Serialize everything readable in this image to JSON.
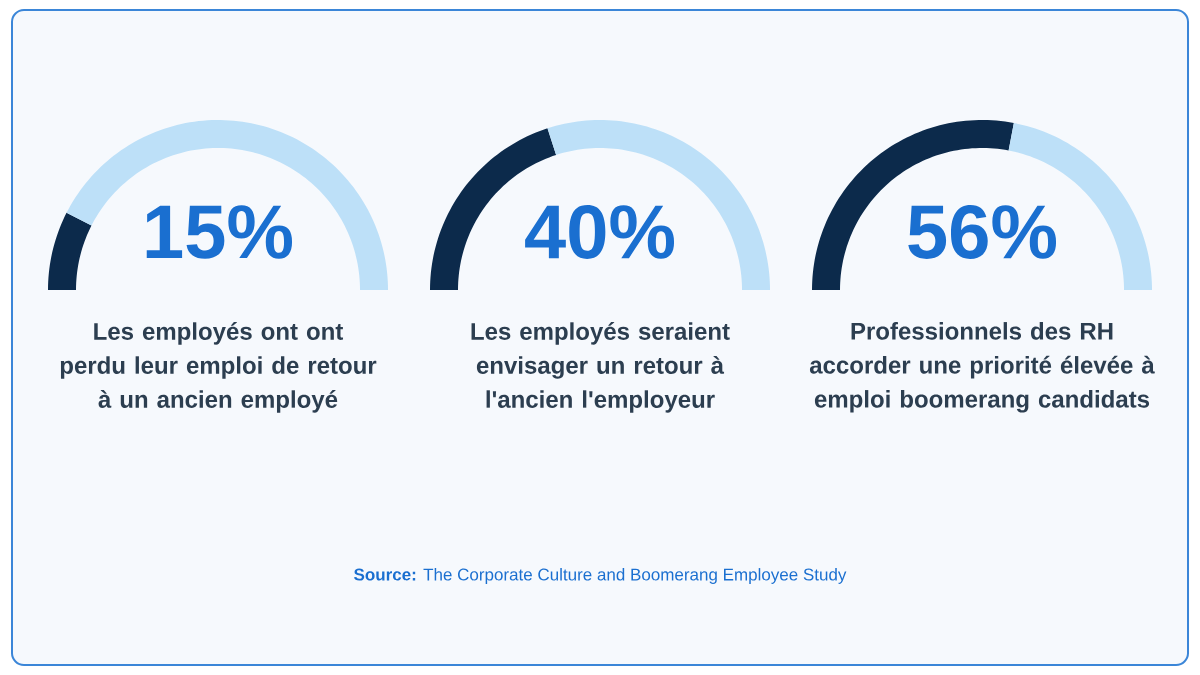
{
  "chart_data": [
    {
      "type": "donut",
      "categories": [
        null,
        null
      ],
      "values": [
        15,
        85
      ],
      "colors": [
        "#0c2a4b",
        "#bde0f8"
      ],
      "title": "15%",
      "subtitle": "Les employés ont ont perdu leur emploi de retour à un ancien employé"
    },
    {
      "type": "donut",
      "categories": [
        null,
        null
      ],
      "values": [
        40,
        60
      ],
      "colors": [
        "#0c2a4b",
        "#bde0f8"
      ],
      "title": "40%",
      "subtitle": "Les employés seraient envisager un retour à l'ancien l'employeur",
      "annotations": [
        "**Source:** The Corporate Culture and Boomerang Employee Study"
      ]
    },
    {
      "type": "donut",
      "categories": [
        null,
        null
      ],
      "values": [
        56,
        44
      ],
      "colors": [
        "#0c2a4b",
        "#bde0f8"
      ],
      "title": "56%",
      "subtitle": "Professionnels des RH accorder une priorité élevée à emploi boomerang candidats"
    }
  ]
}
